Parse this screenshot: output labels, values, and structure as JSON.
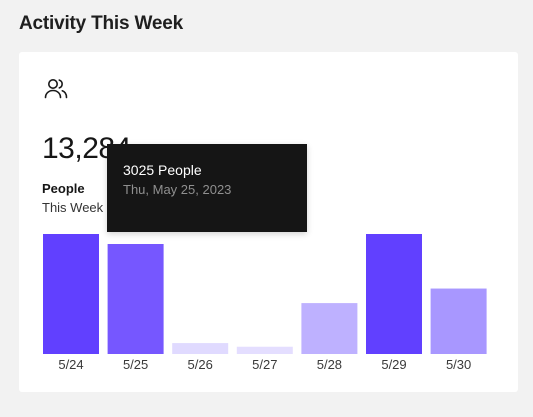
{
  "page": {
    "title": "Activity This Week"
  },
  "card": {
    "icon": "people-icon",
    "stat_value": "13,284",
    "stat_label": "People",
    "stat_period": "This Week"
  },
  "tooltip": {
    "title": "3025 People",
    "date": "Thu, May 25, 2023"
  },
  "colors": {
    "background": "#f2f2f2",
    "card": "#ffffff",
    "tooltip_bg": "#151515",
    "bars": [
      "#6140ff",
      "#7657ff",
      "#e0daff",
      "#e4deff",
      "#beb1ff",
      "#6140ff",
      "#a897ff"
    ]
  },
  "chart_data": {
    "type": "bar",
    "categories": [
      "5/24",
      "5/25",
      "5/26",
      "5/27",
      "5/28",
      "5/29",
      "5/30"
    ],
    "values": [
      3300,
      3025,
      300,
      200,
      1400,
      3300,
      1800
    ],
    "ylim": [
      0,
      3300
    ],
    "grid": false,
    "legend": "none"
  }
}
